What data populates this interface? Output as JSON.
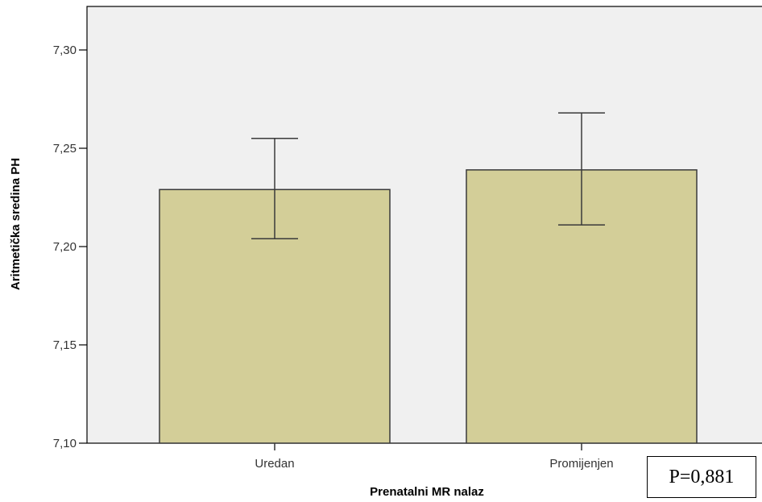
{
  "chart_data": {
    "type": "bar",
    "title": "",
    "xlabel": "Prenatalni MR nalaz",
    "ylabel": "Aritmetička sredina PH",
    "categories": [
      "Uredan",
      "Promijenjen"
    ],
    "values": [
      7.229,
      7.239
    ],
    "error_low": [
      7.204,
      7.211
    ],
    "error_high": [
      7.255,
      7.268
    ],
    "ylim": [
      7.1,
      7.32
    ],
    "yticks": [
      {
        "value": 7.1,
        "label": "7,10"
      },
      {
        "value": 7.15,
        "label": "7,15"
      },
      {
        "value": 7.2,
        "label": "7,20"
      },
      {
        "value": 7.25,
        "label": "7,25"
      },
      {
        "value": 7.3,
        "label": "7,30"
      }
    ],
    "grid": false,
    "colors": {
      "bar_fill": "#d3ce98",
      "bar_stroke": "#3a3a3a",
      "plot_background": "#f0f0f0",
      "error_bar": "#3a3a3a"
    }
  },
  "annotation": {
    "text": "P=0,881"
  }
}
